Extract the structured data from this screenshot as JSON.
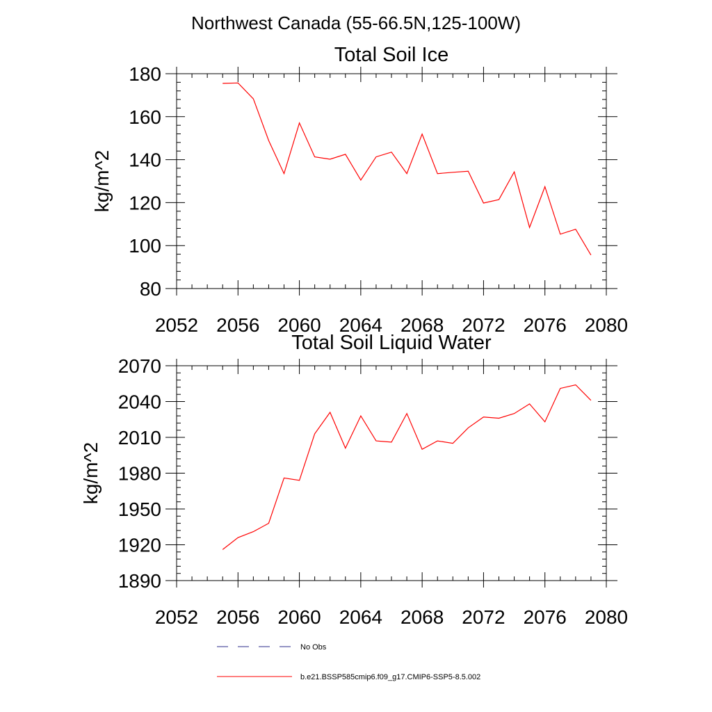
{
  "figure": {
    "title": "Northwest Canada (55-66.5N,125-100W)"
  },
  "colors": {
    "model_line": "#ff0000",
    "obs_line": "#2a2a8a",
    "axis": "#000000"
  },
  "legend": {
    "placement": "bottom",
    "entries": [
      {
        "label": "No Obs",
        "style": "dashed",
        "color": "#2a2a8a"
      },
      {
        "label": "b.e21.BSSP585cmip6.f09_g17.CMIP6-SSP5-8.5.002",
        "style": "solid",
        "color": "#ff0000"
      }
    ]
  },
  "chart_data": [
    {
      "type": "line",
      "title": "Total Soil Ice",
      "xlabel": "",
      "ylabel": "kg/m^2",
      "xlim": [
        2052,
        2080
      ],
      "ylim": [
        80,
        180
      ],
      "xticks": [
        2052,
        2056,
        2060,
        2064,
        2068,
        2072,
        2076,
        2080
      ],
      "yticks": [
        80,
        100,
        120,
        140,
        160,
        180
      ],
      "grid": false,
      "series": [
        {
          "name": "b.e21.BSSP585cmip6.f09_g17.CMIP6-SSP5-8.5.002",
          "color": "#ff0000",
          "x": [
            2055,
            2056,
            2057,
            2058,
            2059,
            2060,
            2061,
            2062,
            2063,
            2064,
            2065,
            2066,
            2067,
            2068,
            2069,
            2070,
            2071,
            2072,
            2073,
            2074,
            2075,
            2076,
            2077,
            2078,
            2079
          ],
          "y": [
            175.5,
            175.7,
            168.3,
            148.9,
            133.5,
            157.1,
            141.3,
            140.2,
            142.5,
            130.5,
            141.3,
            143.5,
            133.5,
            151.9,
            133.5,
            134.1,
            134.6,
            119.8,
            121.4,
            134.3,
            108.4,
            127.4,
            105.3,
            107.6,
            95.6
          ]
        }
      ]
    },
    {
      "type": "line",
      "title": "Total Soil Liquid Water",
      "xlabel": "",
      "ylabel": "kg/m^2",
      "xlim": [
        2052,
        2080
      ],
      "ylim": [
        1890,
        2070
      ],
      "xticks": [
        2052,
        2056,
        2060,
        2064,
        2068,
        2072,
        2076,
        2080
      ],
      "yticks": [
        1890,
        1920,
        1950,
        1980,
        2010,
        2040,
        2070
      ],
      "grid": false,
      "series": [
        {
          "name": "b.e21.BSSP585cmip6.f09_g17.CMIP6-SSP5-8.5.002",
          "color": "#ff0000",
          "x": [
            2055,
            2056,
            2057,
            2058,
            2059,
            2060,
            2061,
            2062,
            2063,
            2064,
            2065,
            2066,
            2067,
            2068,
            2069,
            2070,
            2071,
            2072,
            2073,
            2074,
            2075,
            2076,
            2077,
            2078,
            2079
          ],
          "y": [
            1916,
            1926,
            1931,
            1938,
            1976,
            1974,
            2013,
            2031,
            2001,
            2028,
            2007,
            2006,
            2030,
            2000,
            2007,
            2005,
            2018,
            2027,
            2026,
            2030,
            2038,
            2023,
            2051,
            2054,
            2041
          ]
        }
      ]
    }
  ]
}
